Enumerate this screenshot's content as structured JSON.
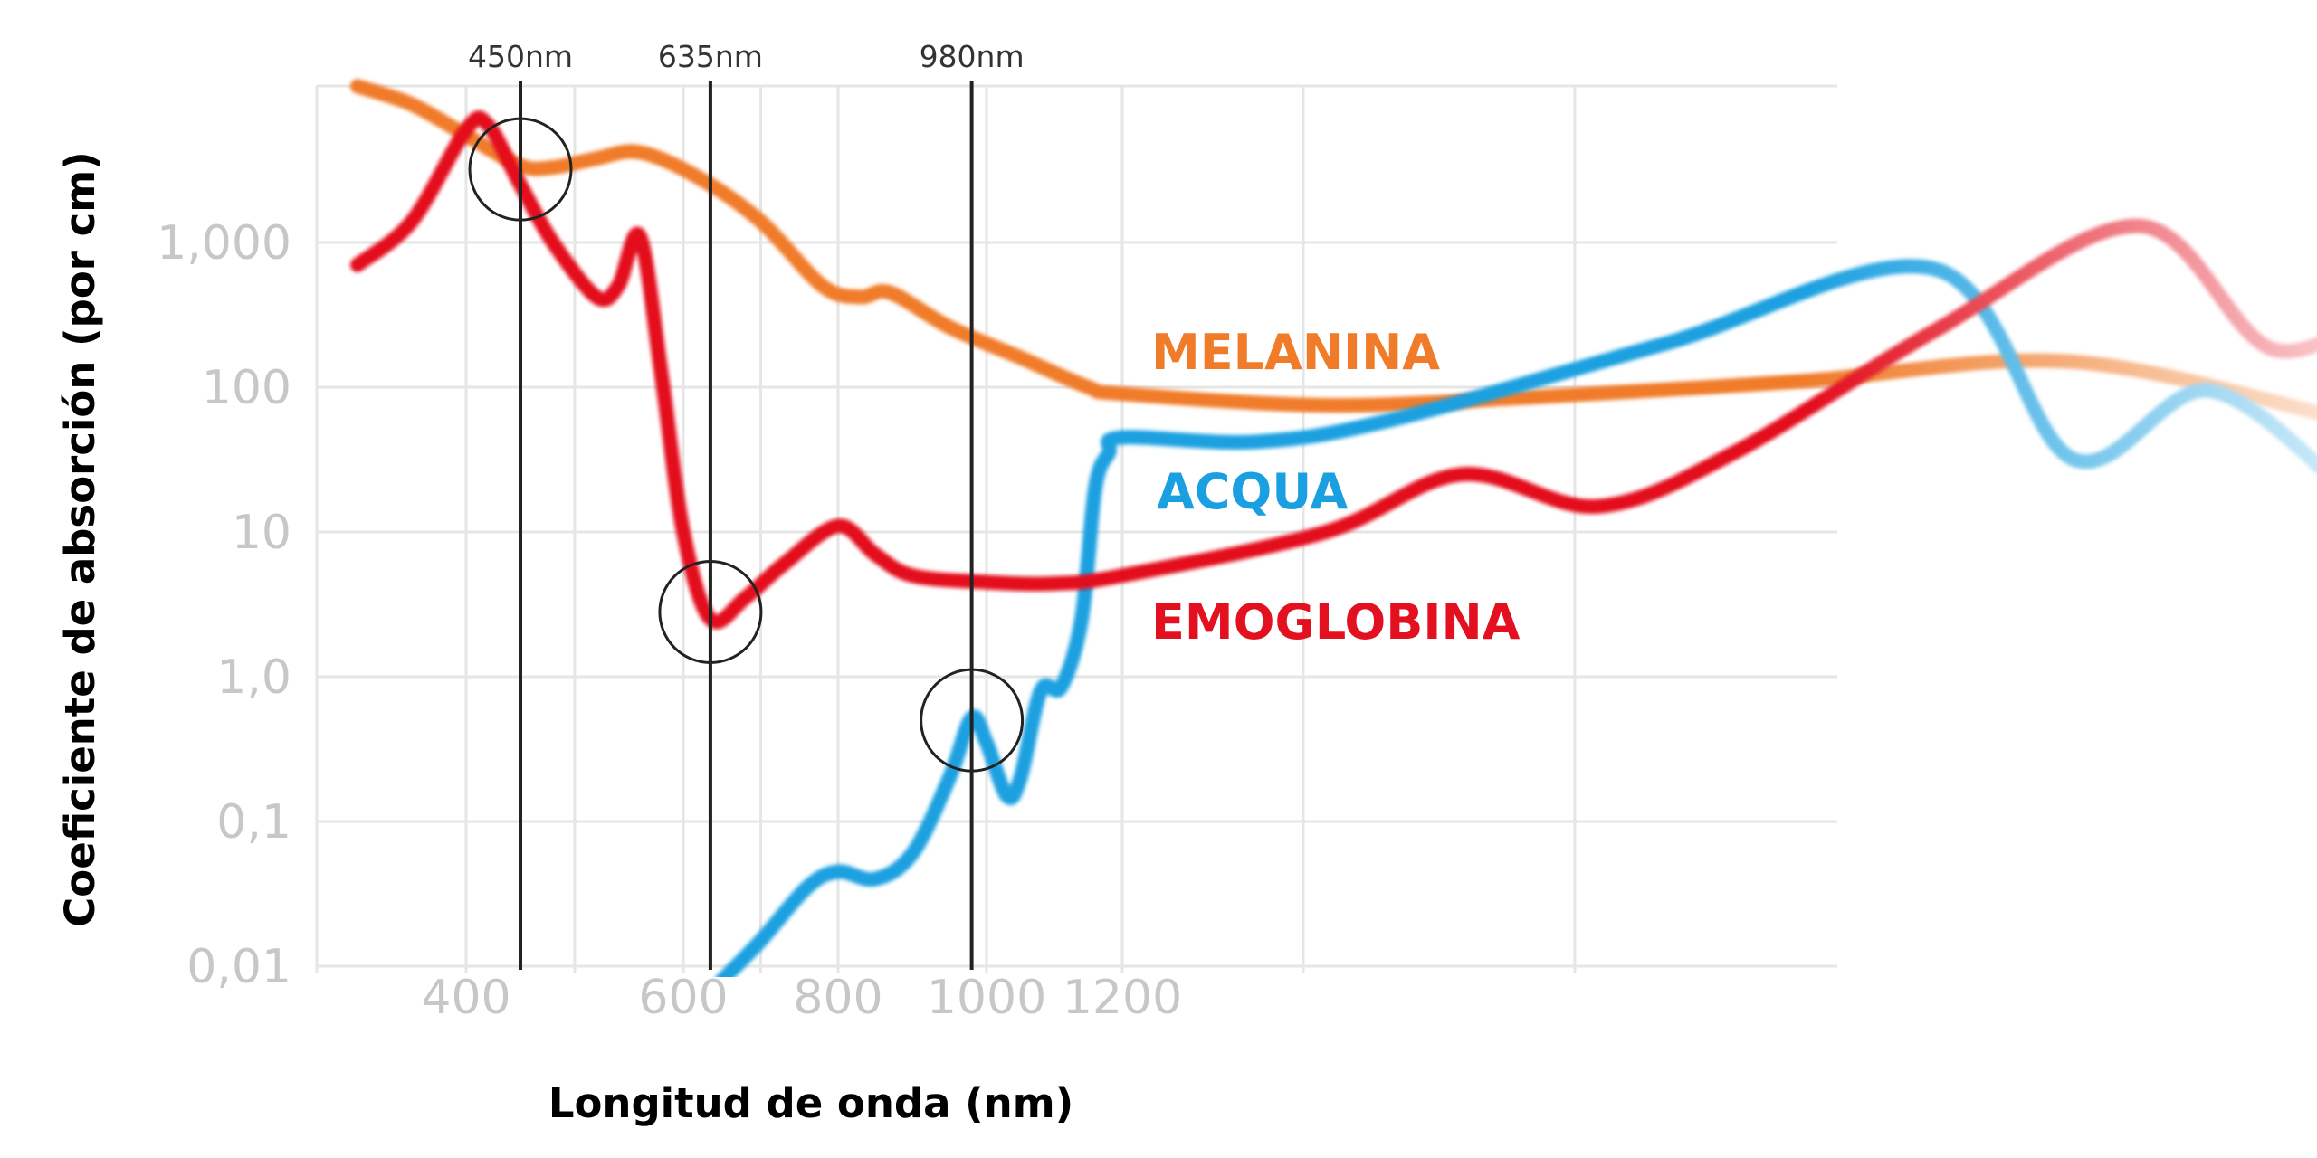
{
  "chart_data": {
    "type": "line",
    "title": "",
    "xlabel": "Longitud de onda (nm)",
    "ylabel": "Coeficiente de absorción (por cm)",
    "y_scale": "log",
    "grid": true,
    "x_ticks": [
      {
        "value": 400,
        "label": "400"
      },
      {
        "value": 600,
        "label": "600"
      },
      {
        "value": 800,
        "label": "800"
      },
      {
        "value": 1000,
        "label": "1000"
      },
      {
        "value": 1200,
        "label": "1200"
      }
    ],
    "y_ticks": [
      {
        "value": 0.01,
        "label": "0,01"
      },
      {
        "value": 0.1,
        "label": "0,1"
      },
      {
        "value": 1,
        "label": "1,0"
      },
      {
        "value": 10,
        "label": "10"
      },
      {
        "value": 100,
        "label": "100"
      },
      {
        "value": 1000,
        "label": "1,000"
      }
    ],
    "markers": [
      {
        "x": 450,
        "label": "450nm",
        "circle_on": "Emoglobina / Melanina",
        "circle_y": 3200
      },
      {
        "x": 635,
        "label": "635nm",
        "circle_on": "Emoglobina",
        "circle_y": 2.8
      },
      {
        "x": 980,
        "label": "980nm",
        "circle_on": "Acqua",
        "circle_y": 0.5
      }
    ],
    "series": [
      {
        "name": "MELANINA",
        "color": "#f07c2a",
        "x": [
          300,
          350,
          400,
          450,
          480,
          520,
          560,
          620,
          700,
          780,
          830,
          870,
          950,
          1050,
          1150,
          1200,
          1350,
          1500,
          1700,
          1900,
          2100
        ],
        "values": [
          12000,
          9000,
          5500,
          3400,
          3300,
          3800,
          4200,
          2800,
          1400,
          500,
          420,
          450,
          260,
          160,
          100,
          90,
          75,
          85,
          110,
          150,
          60
        ]
      },
      {
        "name": "ACQUA",
        "color": "#1aa0e0",
        "x": [
          650,
          700,
          760,
          800,
          850,
          900,
          950,
          980,
          1000,
          1030,
          1050,
          1080,
          1110,
          1140,
          1160,
          1180,
          1200,
          1300,
          1400,
          1600,
          1800,
          1900,
          2000,
          2100
        ],
        "values": [
          0.008,
          0.015,
          0.035,
          0.045,
          0.04,
          0.06,
          0.2,
          0.52,
          0.35,
          0.15,
          0.2,
          0.8,
          0.85,
          2.5,
          20,
          35,
          45,
          42,
          60,
          200,
          650,
          32,
          95,
          20
        ]
      },
      {
        "name": "EMOGLOBINA",
        "color": "#e3101f",
        "x": [
          300,
          350,
          400,
          420,
          450,
          480,
          520,
          540,
          560,
          580,
          600,
          635,
          680,
          730,
          800,
          850,
          900,
          1000,
          1100,
          1200,
          1350,
          1450,
          1550,
          1650,
          1800,
          1950,
          2050,
          2150
        ],
        "values": [
          700,
          1400,
          6000,
          6500,
          2500,
          1000,
          420,
          500,
          1100,
          120,
          10,
          2.5,
          3.5,
          6,
          11,
          7,
          5,
          4.5,
          4.4,
          5,
          10,
          25,
          15,
          35,
          250,
          1300,
          180,
          500
        ]
      }
    ],
    "series_labels": [
      {
        "text": "MELANINA",
        "color": "#f07c2a"
      },
      {
        "text": "ACQUA",
        "color": "#1aa0e0"
      },
      {
        "text": "EMOGLOBINA",
        "color": "#e3101f"
      }
    ]
  }
}
